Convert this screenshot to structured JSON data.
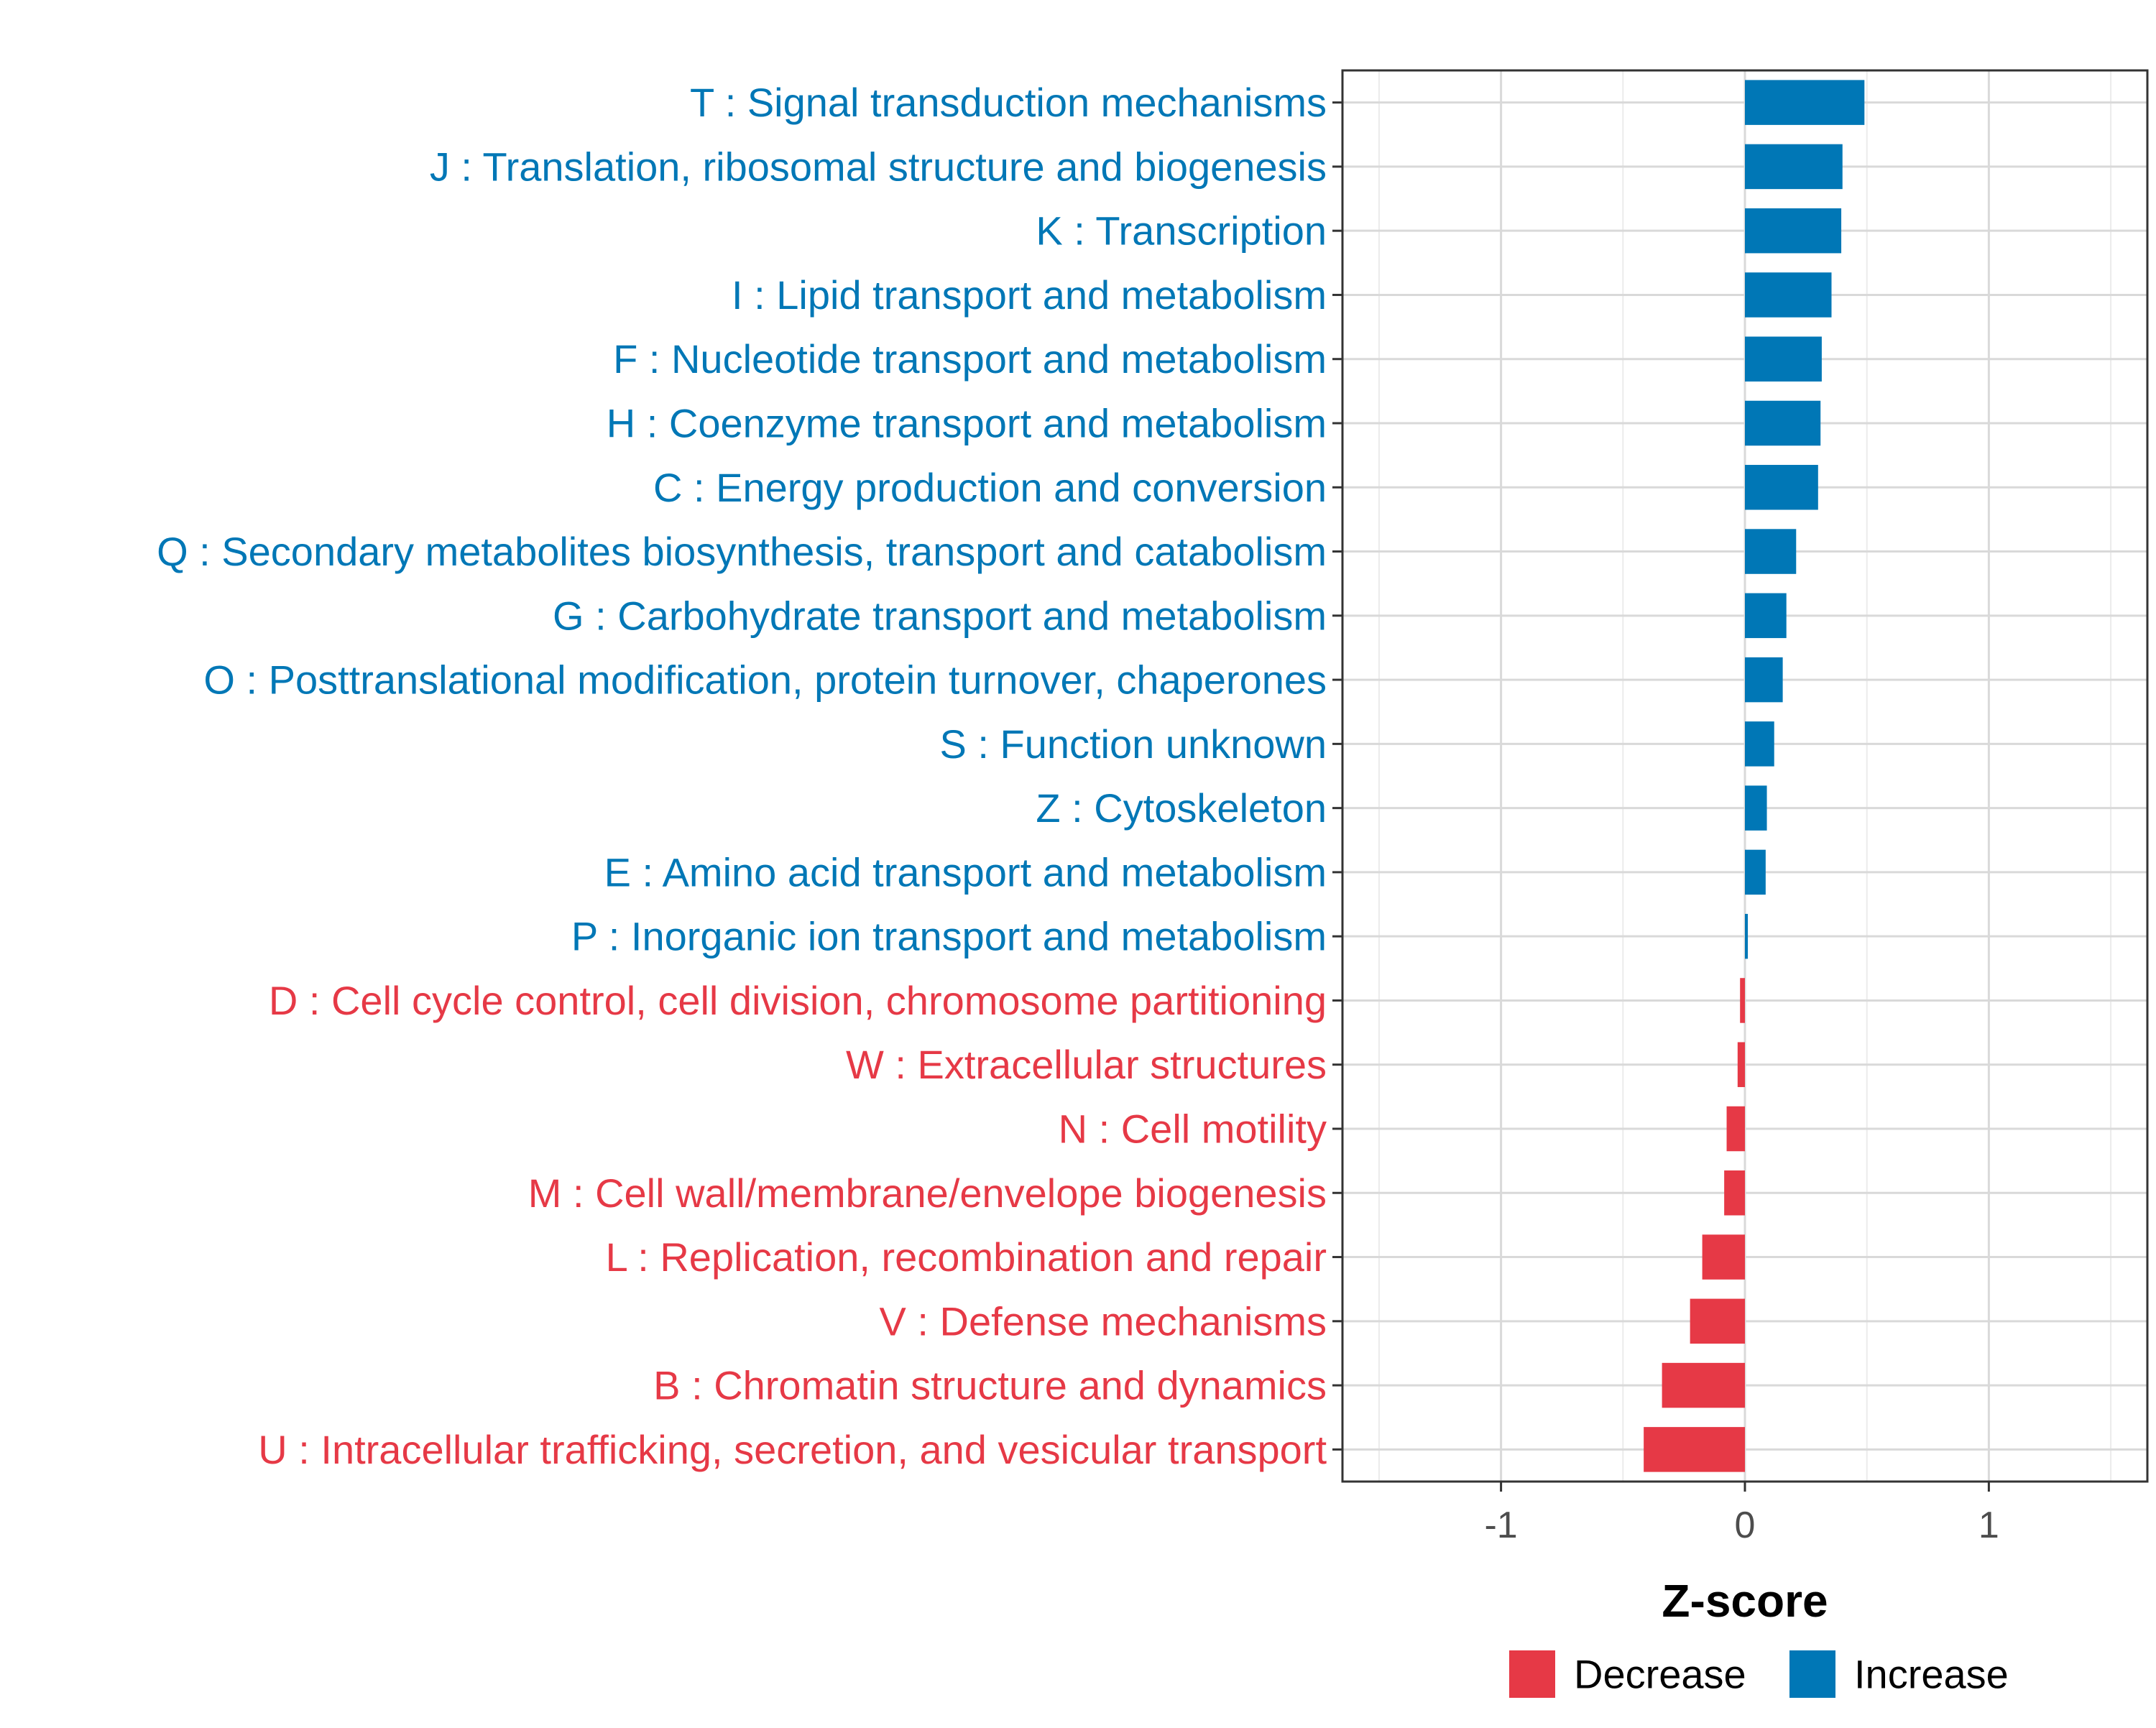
{
  "chart_data": {
    "type": "bar",
    "orientation": "horizontal",
    "title": "",
    "xlabel": "Z-score",
    "ylabel": "",
    "xlim": [
      -1.65,
      1.65
    ],
    "xticks": [
      -1,
      0,
      1
    ],
    "xtick_labels": [
      "-1",
      "0",
      "1"
    ],
    "grid": true,
    "legend_position": "bottom",
    "colors": {
      "Decrease": "#e63946",
      "Increase": "#0077b6"
    },
    "categories": [
      {
        "label": "T : Signal transduction mechanisms",
        "value": 0.49,
        "group": "Increase"
      },
      {
        "label": "J : Translation, ribosomal structure and biogenesis",
        "value": 0.4,
        "group": "Increase"
      },
      {
        "label": "K : Transcription",
        "value": 0.395,
        "group": "Increase"
      },
      {
        "label": "I : Lipid transport and metabolism",
        "value": 0.355,
        "group": "Increase"
      },
      {
        "label": "F : Nucleotide transport and metabolism",
        "value": 0.315,
        "group": "Increase"
      },
      {
        "label": "H : Coenzyme transport and metabolism",
        "value": 0.31,
        "group": "Increase"
      },
      {
        "label": "C : Energy production and conversion",
        "value": 0.3,
        "group": "Increase"
      },
      {
        "label": "Q : Secondary metabolites biosynthesis, transport and catabolism",
        "value": 0.21,
        "group": "Increase"
      },
      {
        "label": "G : Carbohydrate transport and metabolism",
        "value": 0.17,
        "group": "Increase"
      },
      {
        "label": "O : Posttranslational modification, protein turnover, chaperones",
        "value": 0.155,
        "group": "Increase"
      },
      {
        "label": "S : Function unknown",
        "value": 0.12,
        "group": "Increase"
      },
      {
        "label": "Z : Cytoskeleton",
        "value": 0.09,
        "group": "Increase"
      },
      {
        "label": "E : Amino acid transport and metabolism",
        "value": 0.085,
        "group": "Increase"
      },
      {
        "label": "P : Inorganic ion transport and metabolism",
        "value": 0.012,
        "group": "Increase"
      },
      {
        "label": "D : Cell cycle control, cell division, chromosome partitioning",
        "value": -0.02,
        "group": "Decrease"
      },
      {
        "label": "W : Extracellular structures",
        "value": -0.03,
        "group": "Decrease"
      },
      {
        "label": "N : Cell motility",
        "value": -0.075,
        "group": "Decrease"
      },
      {
        "label": "M : Cell wall/membrane/envelope biogenesis",
        "value": -0.085,
        "group": "Decrease"
      },
      {
        "label": "L : Replication, recombination and repair",
        "value": -0.175,
        "group": "Decrease"
      },
      {
        "label": "V : Defense mechanisms",
        "value": -0.225,
        "group": "Decrease"
      },
      {
        "label": "B : Chromatin structure and dynamics",
        "value": -0.34,
        "group": "Decrease"
      },
      {
        "label": "U : Intracellular trafficking, secretion, and vesicular transport",
        "value": -0.415,
        "group": "Decrease"
      }
    ],
    "legend": [
      {
        "label": "Decrease",
        "group": "Decrease"
      },
      {
        "label": "Increase",
        "group": "Increase"
      }
    ]
  }
}
